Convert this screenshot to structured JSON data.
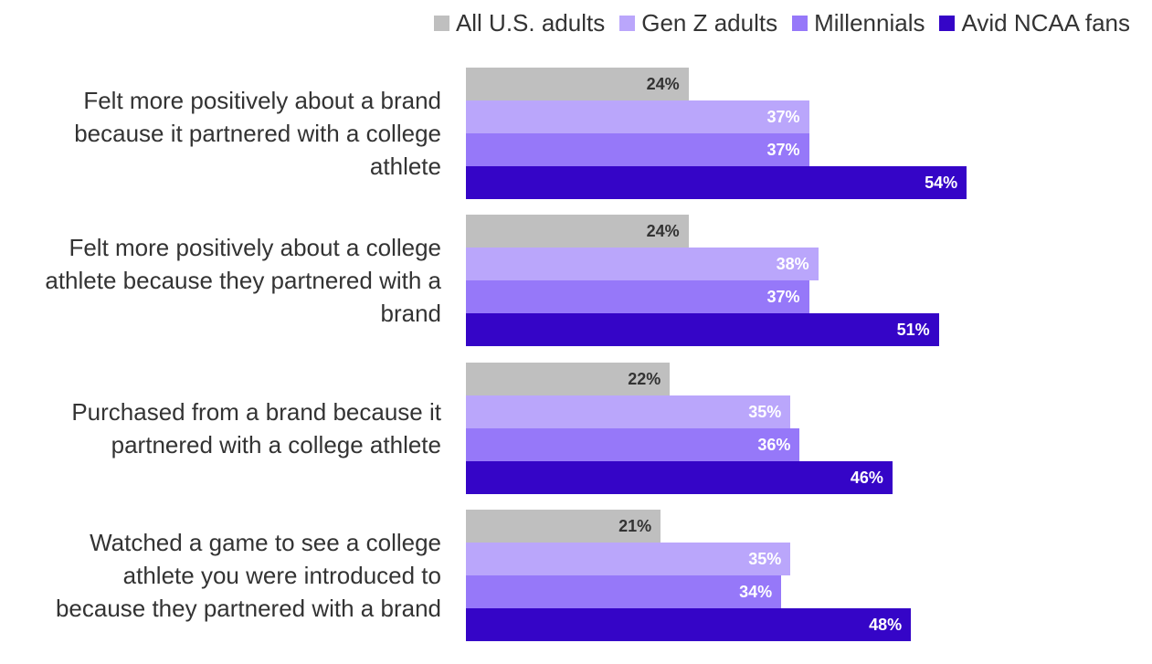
{
  "chart_data": {
    "type": "bar",
    "orientation": "horizontal",
    "categories": [
      "Felt more positively about a brand because it partnered with a college athlete",
      "Felt more positively about a college athlete because they partnered with a brand",
      "Purchased from a brand because it partnered with a college athlete",
      "Watched a game to see a college athlete you were introduced to because they partnered with a brand"
    ],
    "category_lines": [
      [
        "Felt more positively about a brand",
        "because it partnered with a college",
        "athlete"
      ],
      [
        "Felt more positively about a college",
        "athlete because they partnered with a",
        "brand"
      ],
      [
        "Purchased from a brand because it",
        "partnered with a college athlete"
      ],
      [
        "Watched a game to see a college",
        "athlete you were introduced to",
        "because they partnered with a brand"
      ]
    ],
    "series": [
      {
        "name": "All U.S. adults",
        "color": "#bfbfbf",
        "label_color": "#333333",
        "values": [
          24,
          24,
          22,
          21
        ],
        "labels": [
          "24%",
          "24%",
          "22%",
          "21%"
        ]
      },
      {
        "name": "Gen Z adults",
        "color": "#baa6fb",
        "label_color": "#ffffff",
        "values": [
          37,
          38,
          35,
          35
        ],
        "labels": [
          "37%",
          "38%",
          "35%",
          "35%"
        ]
      },
      {
        "name": "Millennials",
        "color": "#9678f9",
        "label_color": "#ffffff",
        "values": [
          37,
          37,
          36,
          34
        ],
        "labels": [
          "37%",
          "37%",
          "36%",
          "34%"
        ]
      },
      {
        "name": "Avid NCAA fans",
        "color": "#3505c7",
        "label_color": "#ffffff",
        "values": [
          54,
          51,
          46,
          48
        ],
        "labels": [
          "54%",
          "51%",
          "46%",
          "48%"
        ]
      }
    ],
    "xlim": [
      0,
      100
    ],
    "legend_position": "top-right",
    "grid": false
  }
}
